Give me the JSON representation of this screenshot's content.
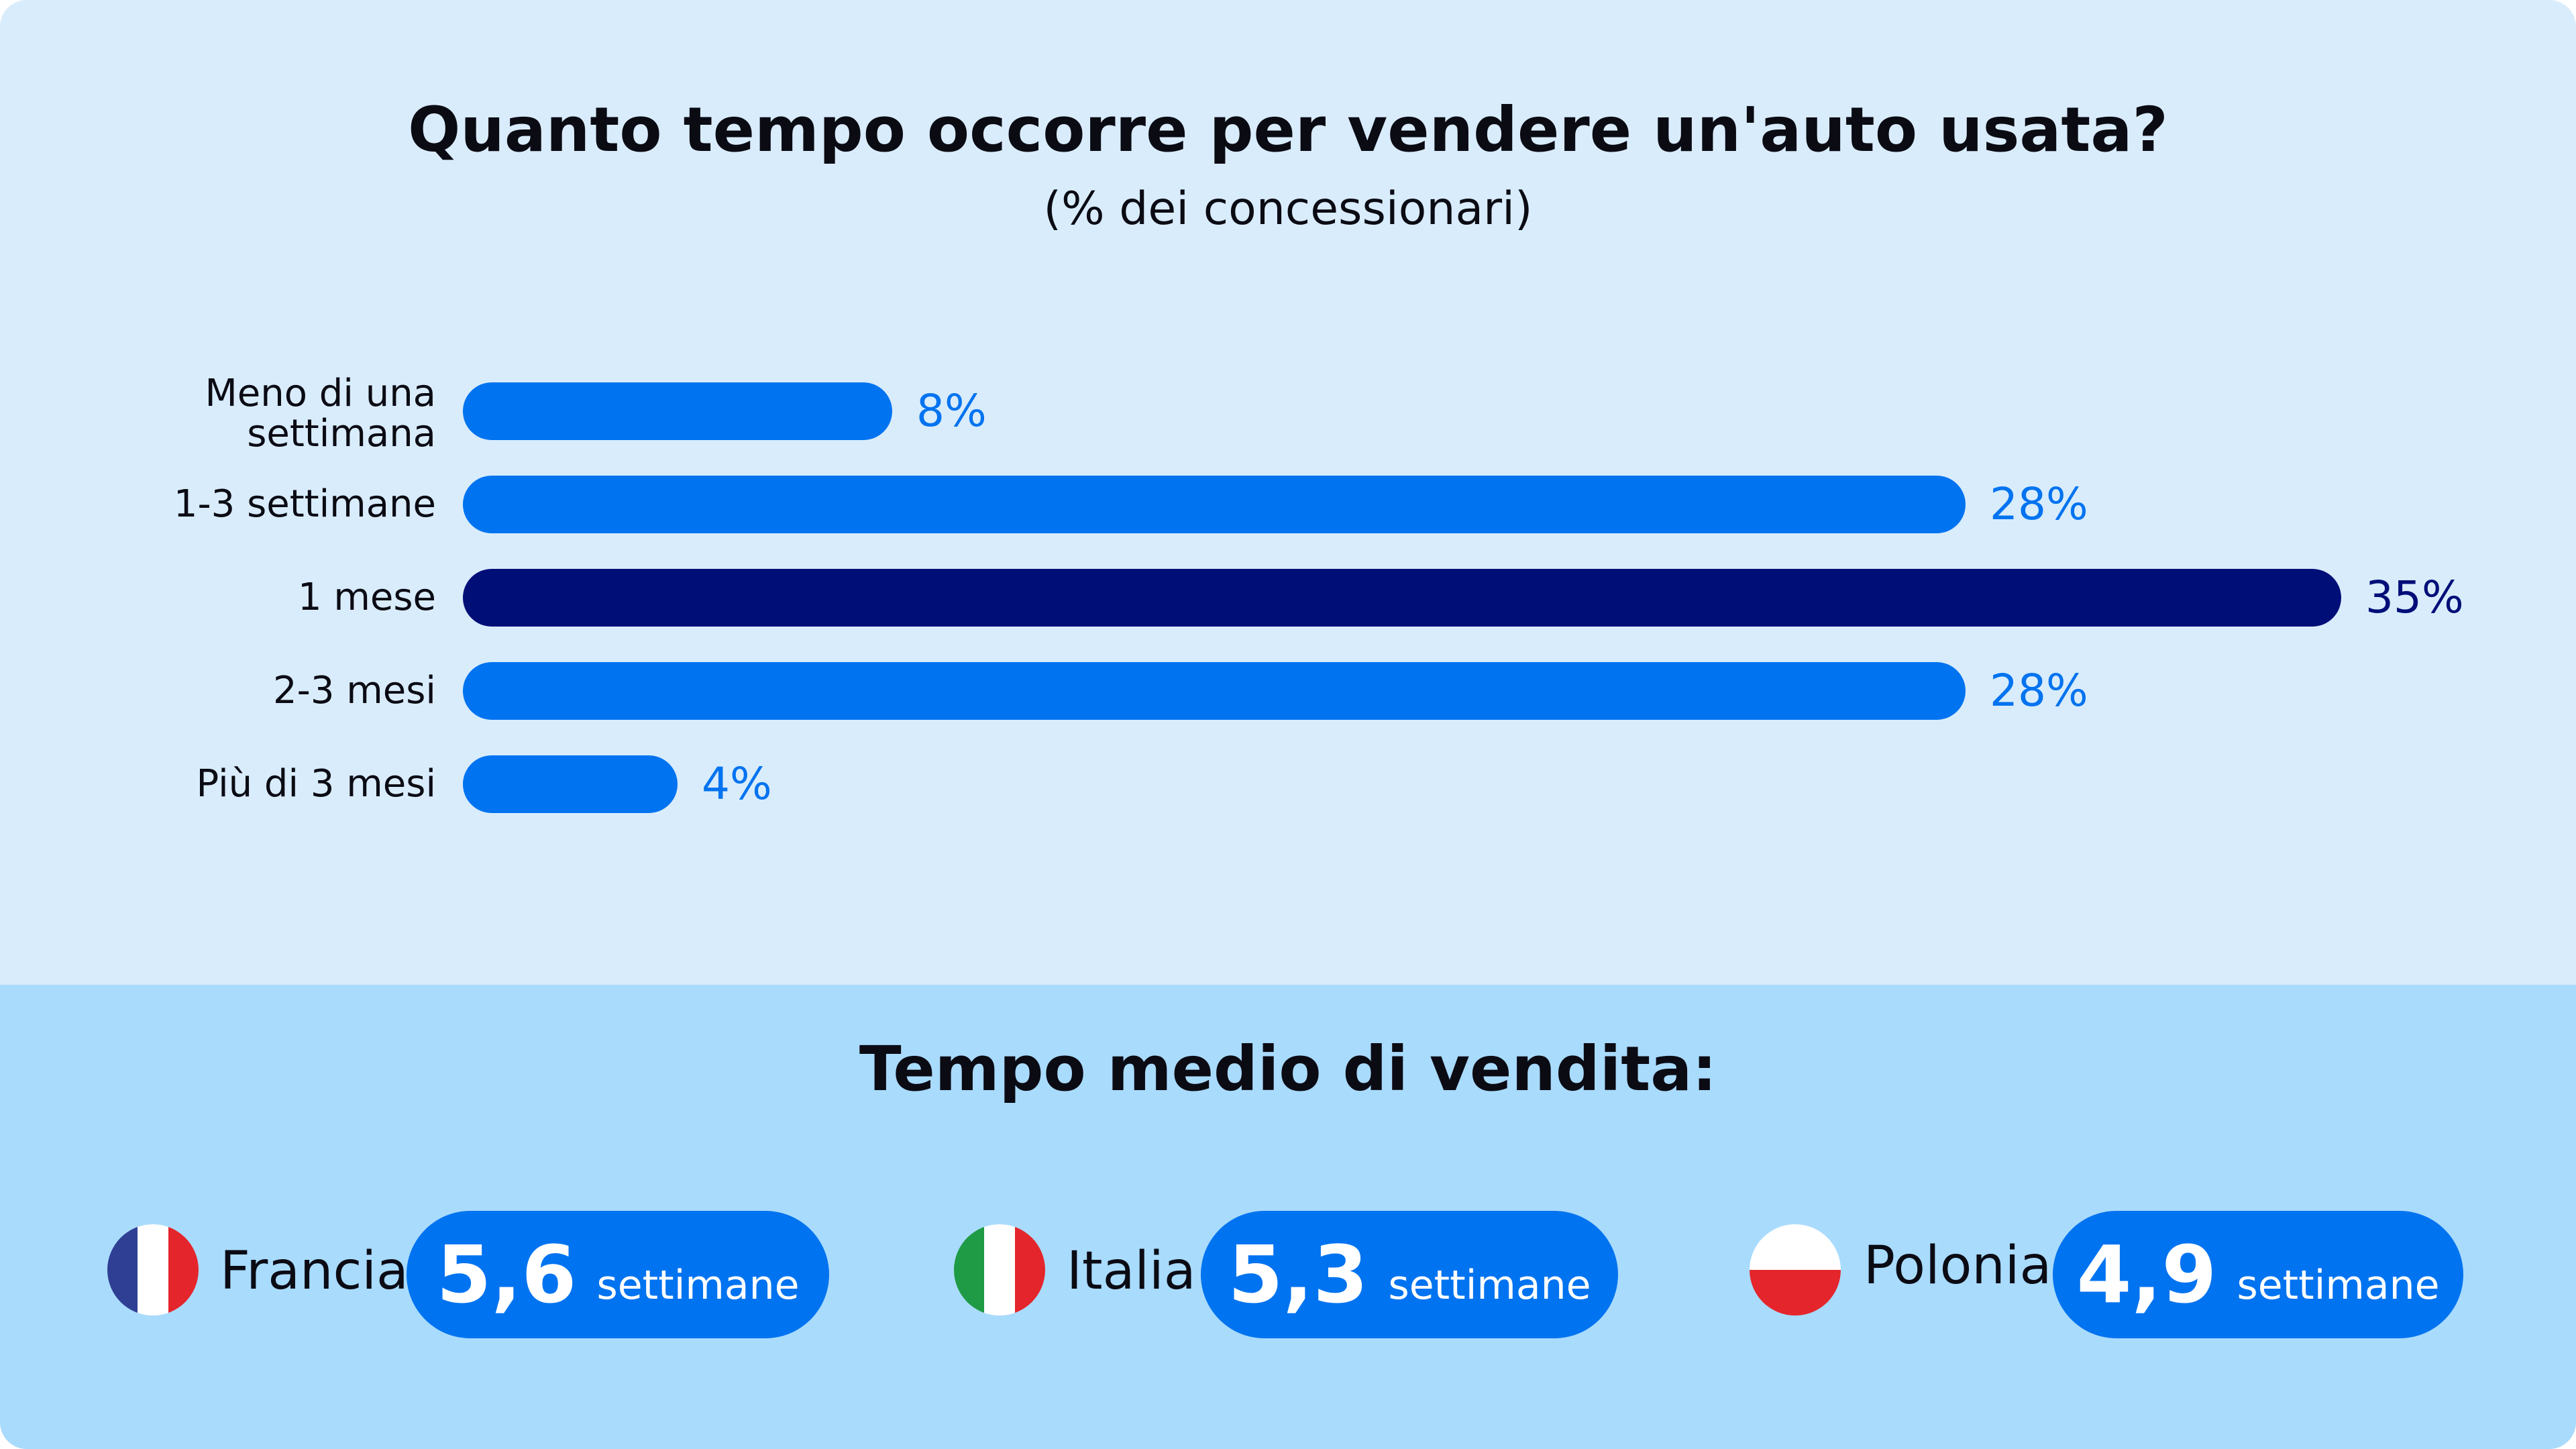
{
  "chart_data": {
    "type": "bar",
    "orientation": "horizontal",
    "title": "Quanto tempo occorre per vendere un'auto usata?",
    "subtitle": "(% dei concessionari)",
    "categories": [
      "Meno di una\nsettimana",
      "1-3 settimane",
      "1 mese",
      "2-3 mesi",
      "Più di 3 mesi"
    ],
    "values": [
      8,
      28,
      35,
      28,
      4
    ],
    "value_labels": [
      "8%",
      "28%",
      "35%",
      "28%",
      "4%"
    ],
    "value_unit": "%",
    "highlight_index": 2,
    "xlim": [
      0,
      35
    ],
    "grid": false,
    "colors": {
      "bar": "#0073f0",
      "highlight": "#000e78"
    }
  },
  "average": {
    "title": "Tempo medio di vendita:",
    "countries": [
      {
        "name": "Francia",
        "value": "5,6",
        "unit": "settimane",
        "flag": "france-flag"
      },
      {
        "name": "Italia",
        "value": "5,3",
        "unit": "settimane",
        "flag": "italy-flag"
      },
      {
        "name": "Polonia",
        "value": "4,9",
        "unit": "settimane",
        "flag": "poland-flag"
      }
    ]
  }
}
